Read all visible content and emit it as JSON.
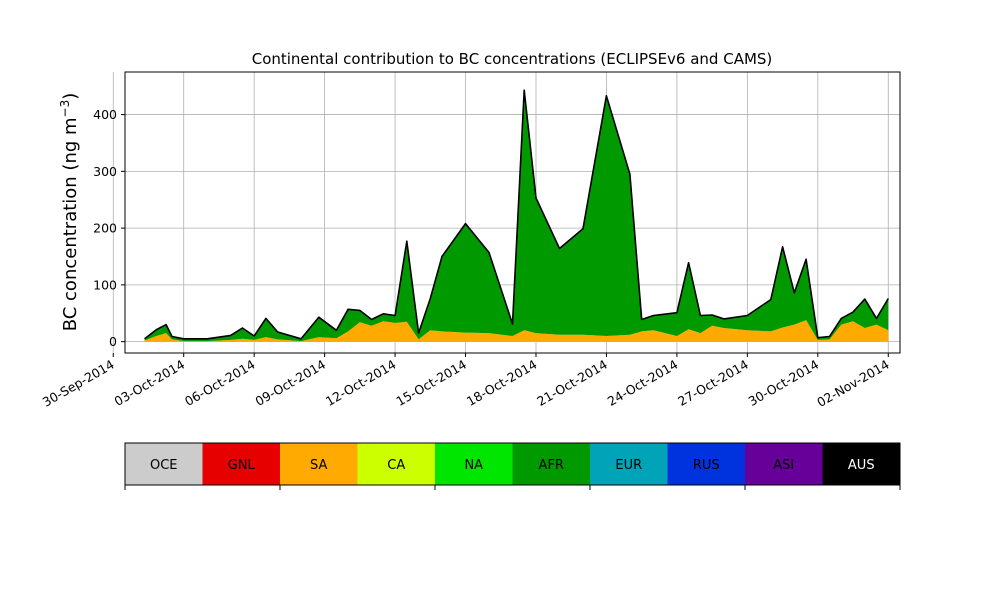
{
  "chart_data": {
    "type": "area",
    "stacked": true,
    "title": "Continental contribution to BC concentrations (ECLIPSEv6 and CAMS)",
    "ylabel_main": "BC concentration (ng m",
    "ylabel_exp": "−3",
    "ylabel_close": ")",
    "ylim": [
      -20,
      475
    ],
    "xlim": [
      "2014-09-30T12:00",
      "2014-11-02T12:00"
    ],
    "grid": true,
    "x_ticks": [
      {
        "date": "2014-09-30",
        "label": "30-Sep-2014"
      },
      {
        "date": "2014-10-03",
        "label": "03-Oct-2014"
      },
      {
        "date": "2014-10-06",
        "label": "06-Oct-2014"
      },
      {
        "date": "2014-10-09",
        "label": "09-Oct-2014"
      },
      {
        "date": "2014-10-12",
        "label": "12-Oct-2014"
      },
      {
        "date": "2014-10-15",
        "label": "15-Oct-2014"
      },
      {
        "date": "2014-10-18",
        "label": "18-Oct-2014"
      },
      {
        "date": "2014-10-21",
        "label": "21-Oct-2014"
      },
      {
        "date": "2014-10-24",
        "label": "24-Oct-2014"
      },
      {
        "date": "2014-10-27",
        "label": "27-Oct-2014"
      },
      {
        "date": "2014-10-30",
        "label": "30-Oct-2014"
      },
      {
        "date": "2014-11-02",
        "label": "02-Nov-2014"
      }
    ],
    "y_ticks": [
      0,
      100,
      200,
      300,
      400
    ],
    "series": [
      {
        "name": "SA",
        "color": "#FFAA00",
        "points": [
          [
            "2014-10-01T08:00",
            2
          ],
          [
            "2014-10-01T20:00",
            10
          ],
          [
            "2014-10-02T06:00",
            15
          ],
          [
            "2014-10-02T12:00",
            4
          ],
          [
            "2014-10-03T00:00",
            1
          ],
          [
            "2014-10-04T00:00",
            1
          ],
          [
            "2014-10-05T00:00",
            3
          ],
          [
            "2014-10-05T12:00",
            5
          ],
          [
            "2014-10-06T00:00",
            3
          ],
          [
            "2014-10-06T12:00",
            8
          ],
          [
            "2014-10-07T00:00",
            4
          ],
          [
            "2014-10-08T00:00",
            1
          ],
          [
            "2014-10-08T18:00",
            8
          ],
          [
            "2014-10-09T12:00",
            6
          ],
          [
            "2014-10-10T00:00",
            18
          ],
          [
            "2014-10-10T12:00",
            34
          ],
          [
            "2014-10-11T00:00",
            28
          ],
          [
            "2014-10-11T12:00",
            36
          ],
          [
            "2014-10-12T00:00",
            33
          ],
          [
            "2014-10-12T12:00",
            35
          ],
          [
            "2014-10-13T00:00",
            4
          ],
          [
            "2014-10-13T12:00",
            20
          ],
          [
            "2014-10-14T00:00",
            18
          ],
          [
            "2014-10-15T00:00",
            16
          ],
          [
            "2014-10-16T00:00",
            15
          ],
          [
            "2014-10-17T00:00",
            10
          ],
          [
            "2014-10-17T12:00",
            20
          ],
          [
            "2014-10-18T00:00",
            15
          ],
          [
            "2014-10-19T00:00",
            12
          ],
          [
            "2014-10-20T00:00",
            12
          ],
          [
            "2014-10-21T00:00",
            10
          ],
          [
            "2014-10-22T00:00",
            12
          ],
          [
            "2014-10-22T12:00",
            18
          ],
          [
            "2014-10-23T00:00",
            20
          ],
          [
            "2014-10-24T00:00",
            10
          ],
          [
            "2014-10-24T12:00",
            22
          ],
          [
            "2014-10-25T00:00",
            15
          ],
          [
            "2014-10-25T12:00",
            28
          ],
          [
            "2014-10-26T00:00",
            24
          ],
          [
            "2014-10-27T00:00",
            20
          ],
          [
            "2014-10-28T00:00",
            18
          ],
          [
            "2014-10-28T12:00",
            25
          ],
          [
            "2014-10-29T00:00",
            30
          ],
          [
            "2014-10-29T12:00",
            38
          ],
          [
            "2014-10-30T00:00",
            3
          ],
          [
            "2014-10-30T12:00",
            4
          ],
          [
            "2014-10-31T00:00",
            30
          ],
          [
            "2014-10-31T12:00",
            36
          ],
          [
            "2014-11-01T00:00",
            24
          ],
          [
            "2014-11-01T12:00",
            30
          ],
          [
            "2014-11-02T00:00",
            20
          ]
        ]
      },
      {
        "name": "AFR",
        "color": "#009A00",
        "points": [
          [
            "2014-10-01T08:00",
            3
          ],
          [
            "2014-10-01T20:00",
            10
          ],
          [
            "2014-10-02T06:00",
            14
          ],
          [
            "2014-10-02T12:00",
            4
          ],
          [
            "2014-10-03T00:00",
            3
          ],
          [
            "2014-10-04T00:00",
            3
          ],
          [
            "2014-10-05T00:00",
            7
          ],
          [
            "2014-10-05T12:00",
            18
          ],
          [
            "2014-10-06T00:00",
            6
          ],
          [
            "2014-10-06T12:00",
            32
          ],
          [
            "2014-10-07T00:00",
            12
          ],
          [
            "2014-10-08T00:00",
            3
          ],
          [
            "2014-10-08T18:00",
            34
          ],
          [
            "2014-10-09T12:00",
            13
          ],
          [
            "2014-10-10T00:00",
            38
          ],
          [
            "2014-10-10T12:00",
            20
          ],
          [
            "2014-10-11T00:00",
            10
          ],
          [
            "2014-10-11T12:00",
            12
          ],
          [
            "2014-10-12T00:00",
            12
          ],
          [
            "2014-10-12T12:00",
            140
          ],
          [
            "2014-10-13T00:00",
            10
          ],
          [
            "2014-10-13T12:00",
            55
          ],
          [
            "2014-10-14T00:00",
            130
          ],
          [
            "2014-10-15T00:00",
            190
          ],
          [
            "2014-10-16T00:00",
            140
          ],
          [
            "2014-10-17T00:00",
            20
          ],
          [
            "2014-10-17T12:00",
            420
          ],
          [
            "2014-10-18T00:00",
            235
          ],
          [
            "2014-10-19T00:00",
            150
          ],
          [
            "2014-10-20T00:00",
            185
          ],
          [
            "2014-10-21T00:00",
            420
          ],
          [
            "2014-10-22T00:00",
            280
          ],
          [
            "2014-10-22T12:00",
            20
          ],
          [
            "2014-10-23T00:00",
            25
          ],
          [
            "2014-10-24T00:00",
            40
          ],
          [
            "2014-10-24T12:00",
            115
          ],
          [
            "2014-10-25T00:00",
            30
          ],
          [
            "2014-10-25T12:00",
            18
          ],
          [
            "2014-10-26T00:00",
            15
          ],
          [
            "2014-10-27T00:00",
            25
          ],
          [
            "2014-10-28T00:00",
            55
          ],
          [
            "2014-10-28T12:00",
            140
          ],
          [
            "2014-10-29T00:00",
            55
          ],
          [
            "2014-10-29T12:00",
            105
          ],
          [
            "2014-10-30T00:00",
            3
          ],
          [
            "2014-10-30T12:00",
            4
          ],
          [
            "2014-10-31T00:00",
            10
          ],
          [
            "2014-10-31T12:00",
            15
          ],
          [
            "2014-11-01T00:00",
            50
          ],
          [
            "2014-11-01T12:00",
            10
          ],
          [
            "2014-11-02T00:00",
            55
          ]
        ]
      },
      {
        "name": "ASI",
        "color": "#660099",
        "points": [
          [
            "2014-10-01T08:00",
            0
          ],
          [
            "2014-10-01T20:00",
            1
          ],
          [
            "2014-10-02T06:00",
            1
          ],
          [
            "2014-10-02T12:00",
            1
          ],
          [
            "2014-10-03T00:00",
            1
          ],
          [
            "2014-10-04T00:00",
            1
          ],
          [
            "2014-10-05T00:00",
            1
          ],
          [
            "2014-10-05T12:00",
            1
          ],
          [
            "2014-10-06T00:00",
            1
          ],
          [
            "2014-10-06T12:00",
            1
          ],
          [
            "2014-10-07T00:00",
            1
          ],
          [
            "2014-10-08T00:00",
            1
          ],
          [
            "2014-10-08T18:00",
            1
          ],
          [
            "2014-10-09T12:00",
            1
          ],
          [
            "2014-10-10T00:00",
            1
          ],
          [
            "2014-10-10T12:00",
            1
          ],
          [
            "2014-10-11T00:00",
            1
          ],
          [
            "2014-10-11T12:00",
            1
          ],
          [
            "2014-10-12T00:00",
            1
          ],
          [
            "2014-10-12T12:00",
            2
          ],
          [
            "2014-10-13T00:00",
            1
          ],
          [
            "2014-10-13T12:00",
            1
          ],
          [
            "2014-10-14T00:00",
            2
          ],
          [
            "2014-10-15T00:00",
            2
          ],
          [
            "2014-10-16T00:00",
            2
          ],
          [
            "2014-10-17T00:00",
            1
          ],
          [
            "2014-10-17T12:00",
            3
          ],
          [
            "2014-10-18T00:00",
            3
          ],
          [
            "2014-10-19T00:00",
            2
          ],
          [
            "2014-10-20T00:00",
            2
          ],
          [
            "2014-10-21T00:00",
            3
          ],
          [
            "2014-10-22T00:00",
            3
          ],
          [
            "2014-10-22T12:00",
            1
          ],
          [
            "2014-10-23T00:00",
            1
          ],
          [
            "2014-10-24T00:00",
            1
          ],
          [
            "2014-10-24T12:00",
            2
          ],
          [
            "2014-10-25T00:00",
            1
          ],
          [
            "2014-10-25T12:00",
            1
          ],
          [
            "2014-10-26T00:00",
            1
          ],
          [
            "2014-10-27T00:00",
            1
          ],
          [
            "2014-10-28T00:00",
            1
          ],
          [
            "2014-10-28T12:00",
            2
          ],
          [
            "2014-10-29T00:00",
            1
          ],
          [
            "2014-10-29T12:00",
            2
          ],
          [
            "2014-10-30T00:00",
            1
          ],
          [
            "2014-10-30T12:00",
            1
          ],
          [
            "2014-10-31T00:00",
            1
          ],
          [
            "2014-10-31T12:00",
            1
          ],
          [
            "2014-11-01T00:00",
            1
          ],
          [
            "2014-11-01T12:00",
            1
          ],
          [
            "2014-11-02T00:00",
            1
          ]
        ]
      }
    ],
    "legend": {
      "placement": "below",
      "entries": [
        {
          "name": "OCE",
          "color": "#CCCCCC",
          "text_color": "#000000"
        },
        {
          "name": "GNL",
          "color": "#E60000",
          "text_color": "#000000"
        },
        {
          "name": "SA",
          "color": "#FFAA00",
          "text_color": "#000000"
        },
        {
          "name": "CA",
          "color": "#CCFF00",
          "text_color": "#000000"
        },
        {
          "name": "NA",
          "color": "#00E600",
          "text_color": "#000000"
        },
        {
          "name": "AFR",
          "color": "#009A00",
          "text_color": "#000000"
        },
        {
          "name": "EUR",
          "color": "#00A3B8",
          "text_color": "#000000"
        },
        {
          "name": "RUS",
          "color": "#0033DD",
          "text_color": "#000000"
        },
        {
          "name": "ASI",
          "color": "#660099",
          "text_color": "#000000"
        },
        {
          "name": "AUS",
          "color": "#000000",
          "text_color": "#FFFFFF"
        }
      ]
    }
  }
}
